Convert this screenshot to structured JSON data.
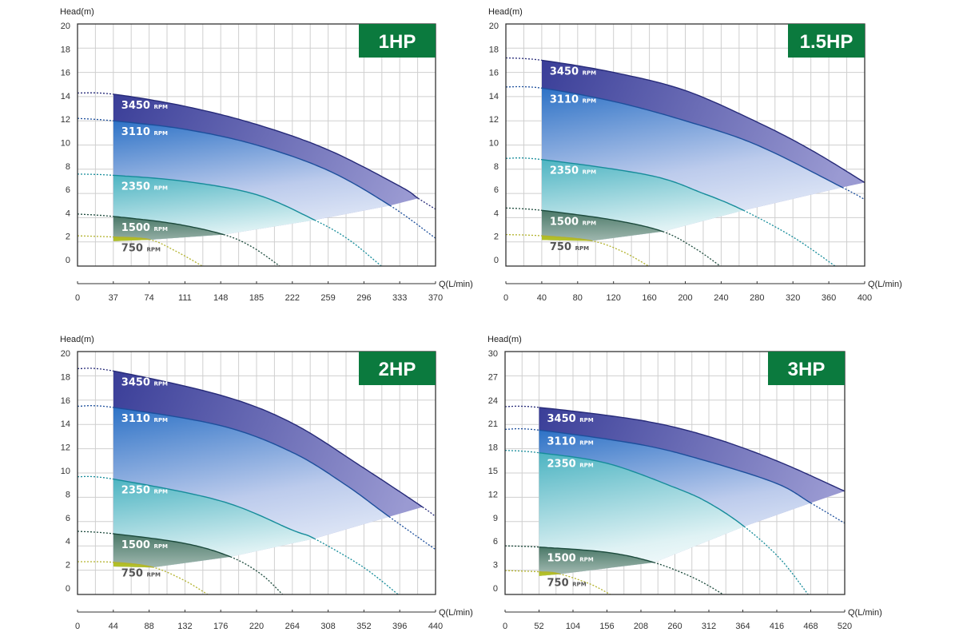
{
  "chart_data": [
    {
      "type": "line",
      "title": "1HP",
      "ylabel": "Head(m)",
      "xlabel": "Q(L/min)",
      "ylim": [
        0,
        20
      ],
      "xlim": [
        0,
        370
      ],
      "grid": true,
      "x_start": 37,
      "y_ticks": [
        0,
        2,
        4,
        6,
        8,
        10,
        12,
        14,
        16,
        18,
        20
      ],
      "x_ticks": [
        0,
        37,
        74,
        111,
        148,
        185,
        222,
        259,
        296,
        333,
        370
      ],
      "series": [
        {
          "name": "3450",
          "unit": "RPM",
          "solid_end": 352,
          "points": [
            [
              0,
              14.3
            ],
            [
              37,
              14.2
            ],
            [
              111,
              13.2
            ],
            [
              185,
              11.7
            ],
            [
              259,
              9.6
            ],
            [
              333,
              6.6
            ],
            [
              352,
              5.6
            ],
            [
              370,
              4.7
            ]
          ]
        },
        {
          "name": "3110",
          "unit": "RPM",
          "solid_end": 323,
          "points": [
            [
              0,
              12.2
            ],
            [
              37,
              12.0
            ],
            [
              111,
              11.3
            ],
            [
              185,
              10.0
            ],
            [
              259,
              7.9
            ],
            [
              323,
              5.0
            ],
            [
              370,
              2.3
            ]
          ]
        },
        {
          "name": "2350",
          "unit": "RPM",
          "solid_end": 245,
          "points": [
            [
              0,
              7.6
            ],
            [
              37,
              7.5
            ],
            [
              111,
              7.0
            ],
            [
              185,
              5.9
            ],
            [
              245,
              3.8
            ],
            [
              280,
              2.2
            ],
            [
              314,
              0
            ]
          ]
        },
        {
          "name": "1500",
          "unit": "RPM",
          "solid_end": 151,
          "points": [
            [
              0,
              4.3
            ],
            [
              37,
              4.1
            ],
            [
              100,
              3.5
            ],
            [
              151,
              2.6
            ],
            [
              180,
              1.6
            ],
            [
              209,
              0
            ]
          ]
        },
        {
          "name": "750",
          "unit": "RPM",
          "solid_end": 74,
          "points": [
            [
              0,
              2.5
            ],
            [
              37,
              2.4
            ],
            [
              74,
              2.2
            ],
            [
              100,
              1.3
            ],
            [
              129,
              0
            ]
          ]
        }
      ]
    },
    {
      "type": "line",
      "title": "1.5HP",
      "ylabel": "Head(m)",
      "xlabel": "Q(L/min)",
      "ylim": [
        0,
        20
      ],
      "xlim": [
        0,
        400
      ],
      "grid": true,
      "x_start": 40,
      "y_ticks": [
        0,
        2,
        4,
        6,
        8,
        10,
        12,
        14,
        16,
        18,
        20
      ],
      "x_ticks": [
        0,
        40,
        80,
        120,
        160,
        200,
        240,
        280,
        320,
        360,
        400
      ],
      "series": [
        {
          "name": "3450",
          "unit": "RPM",
          "solid_end": 400,
          "points": [
            [
              0,
              17.2
            ],
            [
              40,
              17.0
            ],
            [
              120,
              16.0
            ],
            [
              200,
              14.5
            ],
            [
              280,
              11.9
            ],
            [
              340,
              9.6
            ],
            [
              400,
              6.9
            ]
          ]
        },
        {
          "name": "3110",
          "unit": "RPM",
          "solid_end": 375,
          "points": [
            [
              0,
              14.8
            ],
            [
              40,
              14.7
            ],
            [
              120,
              13.6
            ],
            [
              200,
              12.0
            ],
            [
              280,
              10.0
            ],
            [
              375,
              6.5
            ],
            [
              400,
              5.5
            ]
          ]
        },
        {
          "name": "2350",
          "unit": "RPM",
          "solid_end": 265,
          "points": [
            [
              0,
              8.9
            ],
            [
              40,
              8.8
            ],
            [
              160,
              7.5
            ],
            [
              220,
              6.0
            ],
            [
              265,
              4.6
            ],
            [
              320,
              2.4
            ],
            [
              367,
              0
            ]
          ]
        },
        {
          "name": "1500",
          "unit": "RPM",
          "solid_end": 175,
          "points": [
            [
              0,
              4.8
            ],
            [
              40,
              4.6
            ],
            [
              120,
              3.8
            ],
            [
              175,
              2.85
            ],
            [
              210,
              1.5
            ],
            [
              239,
              0
            ]
          ]
        },
        {
          "name": "750",
          "unit": "RPM",
          "solid_end": 95,
          "points": [
            [
              0,
              2.6
            ],
            [
              40,
              2.5
            ],
            [
              95,
              2.1
            ],
            [
              130,
              1.2
            ],
            [
              159,
              0
            ]
          ]
        }
      ]
    },
    {
      "type": "line",
      "title": "2HP",
      "ylabel": "Head(m)",
      "xlabel": "Q(L/min)",
      "ylim": [
        0,
        20
      ],
      "xlim": [
        0,
        440
      ],
      "grid": true,
      "x_start": 44,
      "y_ticks": [
        0,
        2,
        4,
        6,
        8,
        10,
        12,
        14,
        16,
        18,
        20
      ],
      "x_ticks": [
        0,
        44,
        88,
        132,
        176,
        220,
        264,
        308,
        352,
        396,
        440
      ],
      "series": [
        {
          "name": "3450",
          "unit": "RPM",
          "solid_end": 424,
          "points": [
            [
              0,
              18.6
            ],
            [
              44,
              18.4
            ],
            [
              176,
              16.4
            ],
            [
              264,
              14.1
            ],
            [
              352,
              10.4
            ],
            [
              424,
              7.2
            ],
            [
              440,
              6.4
            ]
          ]
        },
        {
          "name": "3110",
          "unit": "RPM",
          "solid_end": 383,
          "points": [
            [
              0,
              15.5
            ],
            [
              44,
              15.4
            ],
            [
              176,
              13.9
            ],
            [
              264,
              11.7
            ],
            [
              330,
              9.0
            ],
            [
              383,
              6.4
            ],
            [
              440,
              3.7
            ]
          ]
        },
        {
          "name": "2350",
          "unit": "RPM",
          "solid_end": 291,
          "points": [
            [
              0,
              9.7
            ],
            [
              44,
              9.5
            ],
            [
              176,
              7.7
            ],
            [
              264,
              5.3
            ],
            [
              291,
              4.6
            ],
            [
              350,
              2.3
            ],
            [
              394,
              0
            ]
          ]
        },
        {
          "name": "1500",
          "unit": "RPM",
          "solid_end": 188,
          "points": [
            [
              0,
              5.2
            ],
            [
              44,
              5.0
            ],
            [
              132,
              4.2
            ],
            [
              188,
              3.1
            ],
            [
              225,
              1.7
            ],
            [
              252,
              0
            ]
          ]
        },
        {
          "name": "750",
          "unit": "RPM",
          "solid_end": 92,
          "points": [
            [
              0,
              2.7
            ],
            [
              44,
              2.65
            ],
            [
              92,
              2.25
            ],
            [
              130,
              1.2
            ],
            [
              160,
              0
            ]
          ]
        }
      ]
    },
    {
      "type": "line",
      "title": "3HP",
      "ylabel": "Head(m)",
      "xlabel": "Q(L/min)",
      "ylim": [
        0,
        30
      ],
      "xlim": [
        0,
        520
      ],
      "grid": true,
      "x_start": 52,
      "y_ticks": [
        0,
        3,
        6,
        9,
        12,
        15,
        18,
        21,
        24,
        27,
        30
      ],
      "x_ticks": [
        0,
        52,
        104,
        156,
        208,
        260,
        312,
        364,
        416,
        468,
        520
      ],
      "series": [
        {
          "name": "3450",
          "unit": "RPM",
          "solid_end": 520,
          "points": [
            [
              0,
              23.2
            ],
            [
              52,
              23.1
            ],
            [
              208,
              21.5
            ],
            [
              312,
              19.5
            ],
            [
              416,
              16.5
            ],
            [
              520,
              12.75
            ]
          ]
        },
        {
          "name": "3110",
          "unit": "RPM",
          "solid_end": 468,
          "points": [
            [
              0,
              20.4
            ],
            [
              52,
              20.3
            ],
            [
              208,
              18.5
            ],
            [
              312,
              16.4
            ],
            [
              416,
              13.7
            ],
            [
              468,
              11.3
            ],
            [
              520,
              8.8
            ]
          ]
        },
        {
          "name": "2350",
          "unit": "RPM",
          "solid_end": 366,
          "points": [
            [
              0,
              17.8
            ],
            [
              52,
              17.5
            ],
            [
              156,
              16.2
            ],
            [
              260,
              13.2
            ],
            [
              312,
              11.3
            ],
            [
              366,
              8.4
            ],
            [
              420,
              4.5
            ],
            [
              464,
              0
            ]
          ]
        },
        {
          "name": "1500",
          "unit": "RPM",
          "solid_end": 228,
          "points": [
            [
              0,
              6.0
            ],
            [
              52,
              5.85
            ],
            [
              156,
              5.2
            ],
            [
              228,
              3.95
            ],
            [
              290,
              2.0
            ],
            [
              334,
              0
            ]
          ]
        },
        {
          "name": "750",
          "unit": "RPM",
          "solid_end": 83,
          "points": [
            [
              0,
              2.95
            ],
            [
              52,
              2.8
            ],
            [
              83,
              2.55
            ],
            [
              130,
              1.3
            ],
            [
              161,
              0
            ]
          ]
        }
      ]
    }
  ],
  "colors": {
    "badge": "#0b7a3e",
    "grid": "#cfcfcf",
    "frame": "#333333",
    "lines": {
      "3450": "#262a78",
      "3110": "#1d4f9c",
      "2350": "#168c9a",
      "1500": "#1c4a3c",
      "750": "#b3b32e"
    }
  }
}
